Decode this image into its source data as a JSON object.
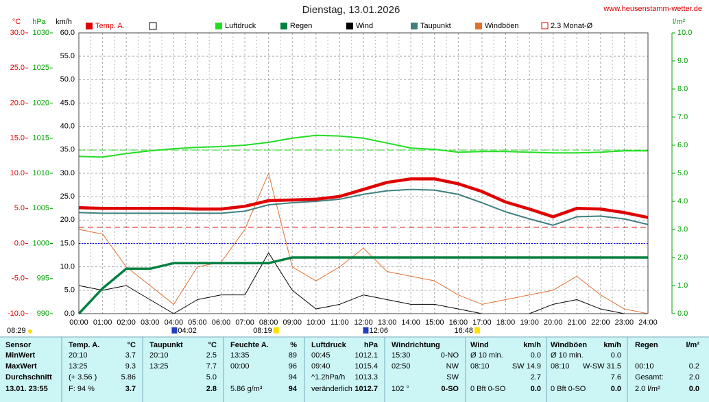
{
  "chart_data": {
    "type": "line",
    "title": "Dienstag, 13.01.2026",
    "source": "www.heusenstamm-wetter.de",
    "grid": true,
    "x": [
      0,
      1,
      2,
      3,
      4,
      5,
      6,
      7,
      8,
      9,
      10,
      11,
      12,
      13,
      14,
      15,
      16,
      17,
      18,
      19,
      20,
      21,
      22,
      23,
      24
    ],
    "xlim": [
      0,
      24
    ],
    "xticks": [
      {
        "value": 0,
        "label": "00:00"
      },
      {
        "value": 1,
        "label": "01:00"
      },
      {
        "value": 2,
        "label": "02:00"
      },
      {
        "value": 3,
        "label": "03:00"
      },
      {
        "value": 4,
        "label": "04:00"
      },
      {
        "value": 5,
        "label": "05:00"
      },
      {
        "value": 6,
        "label": "06:00"
      },
      {
        "value": 7,
        "label": "07:00"
      },
      {
        "value": 8,
        "label": "08:00"
      },
      {
        "value": 9,
        "label": "09:00"
      },
      {
        "value": 10,
        "label": "10:00"
      },
      {
        "value": 11,
        "label": "11:00"
      },
      {
        "value": 12,
        "label": "12:00"
      },
      {
        "value": 13,
        "label": "13:00"
      },
      {
        "value": 14,
        "label": "14:00"
      },
      {
        "value": 15,
        "label": "15:00"
      },
      {
        "value": 16,
        "label": "16:00"
      },
      {
        "value": 17,
        "label": "17:00"
      },
      {
        "value": 18,
        "label": "18:00"
      },
      {
        "value": 19,
        "label": "19:00"
      },
      {
        "value": 20,
        "label": "20:00"
      },
      {
        "value": 21,
        "label": "21:00"
      },
      {
        "value": 22,
        "label": "22:00"
      },
      {
        "value": 23,
        "label": "23:00"
      },
      {
        "value": 24,
        "label": "24:00"
      }
    ],
    "y_label": "km/h",
    "ylim": [
      0,
      60
    ],
    "yticks": [
      {
        "value": 0,
        "label": "0.0"
      },
      {
        "value": 5,
        "label": "5.0"
      },
      {
        "value": 10,
        "label": "10.0"
      },
      {
        "value": 15,
        "label": "15.0"
      },
      {
        "value": 20,
        "label": "20.0"
      },
      {
        "value": 25,
        "label": "25.0"
      },
      {
        "value": 30,
        "label": "30.0"
      },
      {
        "value": 35,
        "label": "35.0"
      },
      {
        "value": 40,
        "label": "40.0"
      },
      {
        "value": 45,
        "label": "45.0"
      },
      {
        "value": 50,
        "label": "50.0"
      },
      {
        "value": 55,
        "label": "55.0"
      },
      {
        "value": 60,
        "label": "60.0"
      }
    ],
    "y2_label": "l/m²",
    "y2lim": [
      0,
      10
    ],
    "y2ticks": [
      {
        "value": 0,
        "label": "0.0"
      },
      {
        "value": 1,
        "label": "1.0"
      },
      {
        "value": 2,
        "label": "2.0"
      },
      {
        "value": 3,
        "label": "3.0"
      },
      {
        "value": 4,
        "label": "4.0"
      },
      {
        "value": 5,
        "label": "5.0"
      },
      {
        "value": 6,
        "label": "6.0"
      },
      {
        "value": 7,
        "label": "7.0"
      },
      {
        "value": 8,
        "label": "8.0"
      },
      {
        "value": 9,
        "label": "9.0"
      },
      {
        "value": 10,
        "label": "10.0"
      }
    ],
    "temp_label": "°C",
    "temp_lim": [
      -10,
      30
    ],
    "temp_ticks": [
      {
        "value": -10,
        "label": "-10.0"
      },
      {
        "value": -5,
        "label": "-5.0"
      },
      {
        "value": 0,
        "label": "0.0"
      },
      {
        "value": 5,
        "label": "5.0"
      },
      {
        "value": 10,
        "label": "10.0"
      },
      {
        "value": 15,
        "label": "15.0"
      },
      {
        "value": 20,
        "label": "20.0"
      },
      {
        "value": 25,
        "label": "25.0"
      },
      {
        "value": 30,
        "label": "30.0"
      }
    ],
    "hpa_label": "hPa",
    "hpa_lim": [
      990,
      1030
    ],
    "hpa_ticks": [
      990,
      995,
      1000,
      1005,
      1010,
      1015,
      1020,
      1025,
      1030
    ],
    "series": [
      {
        "name": "Temp. A.",
        "color": "#e00000",
        "axis": "temp",
        "values": [
          5.1,
          5.0,
          5.0,
          5.0,
          5.0,
          4.9,
          4.9,
          5.3,
          6.1,
          6.2,
          6.3,
          6.7,
          7.7,
          8.7,
          9.2,
          9.2,
          8.5,
          7.4,
          5.9,
          4.9,
          3.8,
          5.0,
          4.9,
          4.4,
          3.7
        ]
      },
      {
        "name": "Luftdruck",
        "color": "#22dd22",
        "axis": "hpa",
        "values": [
          1012.4,
          1012.3,
          1012.8,
          1013.2,
          1013.5,
          1013.7,
          1013.8,
          1014.0,
          1014.4,
          1015.0,
          1015.4,
          1015.3,
          1015.0,
          1014.3,
          1013.6,
          1013.4,
          1013.0,
          1013.1,
          1013.1,
          1013.0,
          1012.9,
          1012.9,
          1013.0,
          1013.2,
          1013.2
        ]
      },
      {
        "name": "Regen",
        "color": "#008040",
        "axis": "y2",
        "values": [
          0,
          0.9,
          1.6,
          1.6,
          1.8,
          1.8,
          1.8,
          1.8,
          1.8,
          2.0,
          2.0,
          2.0,
          2.0,
          2.0,
          2.0,
          2.0,
          2.0,
          2.0,
          2.0,
          2.0,
          2.0,
          2.0,
          2.0,
          2.0,
          2.0
        ]
      },
      {
        "name": "Wind",
        "color": "#000000",
        "axis": "y",
        "values": [
          6,
          5,
          6,
          3,
          0,
          3,
          4,
          4,
          13,
          5,
          1,
          2,
          4,
          3,
          2,
          2,
          1,
          0,
          0,
          0,
          2,
          3,
          1,
          0,
          0
        ]
      },
      {
        "name": "Taupunkt",
        "color": "#3f7f7f",
        "axis": "temp",
        "values": [
          4.4,
          4.3,
          4.3,
          4.3,
          4.3,
          4.3,
          4.3,
          4.6,
          5.5,
          5.8,
          6.0,
          6.3,
          7.0,
          7.5,
          7.7,
          7.6,
          7.0,
          5.8,
          4.5,
          3.5,
          2.6,
          3.8,
          3.9,
          3.5,
          2.7
        ]
      },
      {
        "name": "Windböen",
        "color": "#e07030",
        "axis": "y",
        "values": [
          18,
          17,
          10,
          6,
          2,
          10,
          11,
          18,
          30,
          10,
          7,
          10,
          14,
          9,
          8,
          7,
          4,
          2,
          3,
          4,
          5,
          8,
          4,
          1,
          0
        ]
      }
    ],
    "reference_lines": [
      {
        "name": "2.3 Monat-Ø",
        "value": 2.3,
        "axis": "temp",
        "color": "#e00000"
      },
      {
        "value": 0,
        "axis": "temp",
        "color": "#0000ee"
      },
      {
        "value": 1013.3,
        "axis": "hpa",
        "color": "#22dd22"
      }
    ],
    "annotations": [
      {
        "label": "08:29"
      },
      {
        "label": "04:02",
        "x": 4.03
      },
      {
        "label": "08:19",
        "x": 8.32
      },
      {
        "label": "12:06",
        "x": 12.1
      },
      {
        "label": "16:48",
        "x": 16.8
      }
    ]
  },
  "table": {
    "header": [
      "Sensor",
      "Temp. A.",
      "°C",
      "Taupunkt",
      "°C",
      "Feuchte A.",
      "%",
      "Luftdruck",
      "hPa",
      "Windrichtung",
      null,
      "Wind",
      "km/h",
      "Windböen",
      "km/h",
      "Regen",
      "l/m²"
    ],
    "rows": [
      [
        "MinWert",
        "20:10",
        "3.7",
        "20:10",
        "2.5",
        "13:35",
        "89",
        "00:45",
        "1012.1",
        "15:30",
        "0-NO",
        "Ø 10 min.",
        "0.0",
        "Ø 10 min.",
        "0.0",
        null,
        null
      ],
      [
        "MaxWert",
        "13:25",
        "9.3",
        "13:25",
        "7.7",
        "00:00",
        "96",
        "09:40",
        "1015.4",
        "02:50",
        "NW",
        "08:10",
        "SW 14.9",
        "08:10",
        "W-SW 31.5",
        "00:10",
        "0.2"
      ],
      [
        "Durchschnitt",
        "(+ 3.56 )",
        "5.86",
        null,
        "5.0",
        null,
        "94",
        "^1.2hPa/h",
        "1013.3",
        null,
        "SW",
        null,
        "2.7",
        null,
        "7.6",
        "Gesamt:",
        "2.0"
      ],
      [
        "13.01. 23:55",
        "F: 94 %",
        "3.7",
        null,
        "2.8",
        "5.86 g/m³",
        "94",
        "veränderlich",
        "1012.7",
        "102 °",
        "0-SO",
        "0 Bft 0-SO",
        "0.0",
        "0 Bft 0-SO",
        "0.0",
        "2.0 l/m²",
        "0.0"
      ]
    ]
  }
}
